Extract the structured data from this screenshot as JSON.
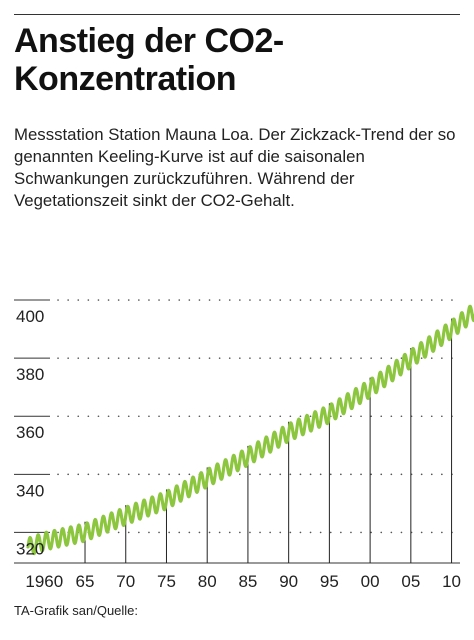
{
  "title": "Anstieg der CO2-Konzentration",
  "subtitle": "Messstation Station Mauna Loa. Der Zickzack-Trend der so genannten Keeling-Kurve ist auf die saisonalen Schwankungen zurückzuführen. Während der Vegetationszeit sinkt der CO2-Gehalt.",
  "source": "TA-Grafik san/Quelle:",
  "chart_data": {
    "type": "line",
    "title": "",
    "xlabel": "",
    "ylabel": "",
    "x_range": [
      1958,
      2013
    ],
    "ylim": [
      305,
      410
    ],
    "y_ticks": [
      320,
      340,
      360,
      380,
      400
    ],
    "x_ticks": [
      {
        "year": 1960,
        "label": "1960"
      },
      {
        "year": 1965,
        "label": "65"
      },
      {
        "year": 1970,
        "label": "70"
      },
      {
        "year": 1975,
        "label": "75"
      },
      {
        "year": 1980,
        "label": "80"
      },
      {
        "year": 1985,
        "label": "85"
      },
      {
        "year": 1990,
        "label": "90"
      },
      {
        "year": 1995,
        "label": "95"
      },
      {
        "year": 2000,
        "label": "00"
      },
      {
        "year": 2005,
        "label": "05"
      },
      {
        "year": 2010,
        "label": "10"
      }
    ],
    "grid": "dotted horizontal",
    "series_color": "#8cc63f",
    "seasonal_amplitude": 3,
    "series": [
      {
        "x": [
          1958,
          1960,
          1965,
          1970,
          1975,
          1980,
          1985,
          1990,
          1995,
          2000,
          2005,
          2010,
          2013
        ],
        "values": [
          315,
          316.9,
          320.0,
          325.7,
          331.1,
          338.7,
          346.1,
          354.4,
          360.8,
          369.6,
          379.8,
          389.9,
          396.5
        ]
      }
    ]
  }
}
